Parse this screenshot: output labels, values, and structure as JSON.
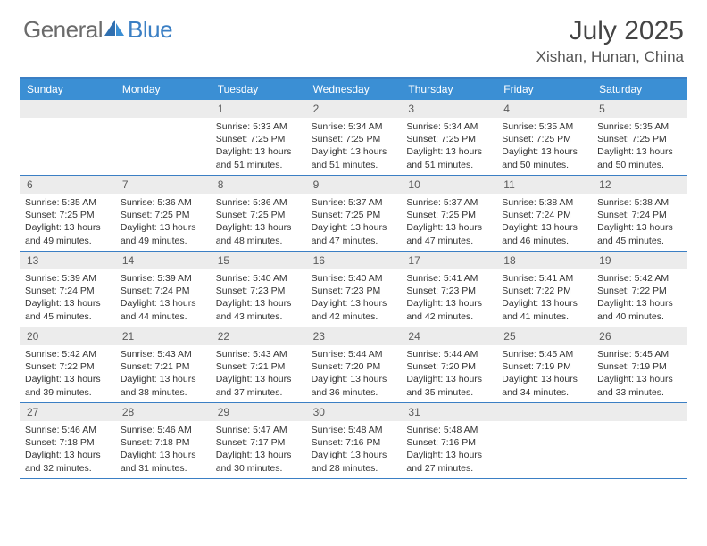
{
  "logo": {
    "text1": "General",
    "text2": "Blue"
  },
  "title": "July 2025",
  "location": "Xishan, Hunan, China",
  "colors": {
    "header_bar": "#3b8fd4",
    "accent_line": "#3b7fc4",
    "daynum_bg": "#ececec",
    "text": "#333333",
    "logo_gray": "#6b6b6b",
    "logo_blue": "#3b7fc4"
  },
  "day_headers": [
    "Sunday",
    "Monday",
    "Tuesday",
    "Wednesday",
    "Thursday",
    "Friday",
    "Saturday"
  ],
  "weeks": [
    [
      {
        "n": "",
        "sr": "",
        "ss": "",
        "dl": ""
      },
      {
        "n": "",
        "sr": "",
        "ss": "",
        "dl": ""
      },
      {
        "n": "1",
        "sr": "5:33 AM",
        "ss": "7:25 PM",
        "dl": "13 hours and 51 minutes."
      },
      {
        "n": "2",
        "sr": "5:34 AM",
        "ss": "7:25 PM",
        "dl": "13 hours and 51 minutes."
      },
      {
        "n": "3",
        "sr": "5:34 AM",
        "ss": "7:25 PM",
        "dl": "13 hours and 51 minutes."
      },
      {
        "n": "4",
        "sr": "5:35 AM",
        "ss": "7:25 PM",
        "dl": "13 hours and 50 minutes."
      },
      {
        "n": "5",
        "sr": "5:35 AM",
        "ss": "7:25 PM",
        "dl": "13 hours and 50 minutes."
      }
    ],
    [
      {
        "n": "6",
        "sr": "5:35 AM",
        "ss": "7:25 PM",
        "dl": "13 hours and 49 minutes."
      },
      {
        "n": "7",
        "sr": "5:36 AM",
        "ss": "7:25 PM",
        "dl": "13 hours and 49 minutes."
      },
      {
        "n": "8",
        "sr": "5:36 AM",
        "ss": "7:25 PM",
        "dl": "13 hours and 48 minutes."
      },
      {
        "n": "9",
        "sr": "5:37 AM",
        "ss": "7:25 PM",
        "dl": "13 hours and 47 minutes."
      },
      {
        "n": "10",
        "sr": "5:37 AM",
        "ss": "7:25 PM",
        "dl": "13 hours and 47 minutes."
      },
      {
        "n": "11",
        "sr": "5:38 AM",
        "ss": "7:24 PM",
        "dl": "13 hours and 46 minutes."
      },
      {
        "n": "12",
        "sr": "5:38 AM",
        "ss": "7:24 PM",
        "dl": "13 hours and 45 minutes."
      }
    ],
    [
      {
        "n": "13",
        "sr": "5:39 AM",
        "ss": "7:24 PM",
        "dl": "13 hours and 45 minutes."
      },
      {
        "n": "14",
        "sr": "5:39 AM",
        "ss": "7:24 PM",
        "dl": "13 hours and 44 minutes."
      },
      {
        "n": "15",
        "sr": "5:40 AM",
        "ss": "7:23 PM",
        "dl": "13 hours and 43 minutes."
      },
      {
        "n": "16",
        "sr": "5:40 AM",
        "ss": "7:23 PM",
        "dl": "13 hours and 42 minutes."
      },
      {
        "n": "17",
        "sr": "5:41 AM",
        "ss": "7:23 PM",
        "dl": "13 hours and 42 minutes."
      },
      {
        "n": "18",
        "sr": "5:41 AM",
        "ss": "7:22 PM",
        "dl": "13 hours and 41 minutes."
      },
      {
        "n": "19",
        "sr": "5:42 AM",
        "ss": "7:22 PM",
        "dl": "13 hours and 40 minutes."
      }
    ],
    [
      {
        "n": "20",
        "sr": "5:42 AM",
        "ss": "7:22 PM",
        "dl": "13 hours and 39 minutes."
      },
      {
        "n": "21",
        "sr": "5:43 AM",
        "ss": "7:21 PM",
        "dl": "13 hours and 38 minutes."
      },
      {
        "n": "22",
        "sr": "5:43 AM",
        "ss": "7:21 PM",
        "dl": "13 hours and 37 minutes."
      },
      {
        "n": "23",
        "sr": "5:44 AM",
        "ss": "7:20 PM",
        "dl": "13 hours and 36 minutes."
      },
      {
        "n": "24",
        "sr": "5:44 AM",
        "ss": "7:20 PM",
        "dl": "13 hours and 35 minutes."
      },
      {
        "n": "25",
        "sr": "5:45 AM",
        "ss": "7:19 PM",
        "dl": "13 hours and 34 minutes."
      },
      {
        "n": "26",
        "sr": "5:45 AM",
        "ss": "7:19 PM",
        "dl": "13 hours and 33 minutes."
      }
    ],
    [
      {
        "n": "27",
        "sr": "5:46 AM",
        "ss": "7:18 PM",
        "dl": "13 hours and 32 minutes."
      },
      {
        "n": "28",
        "sr": "5:46 AM",
        "ss": "7:18 PM",
        "dl": "13 hours and 31 minutes."
      },
      {
        "n": "29",
        "sr": "5:47 AM",
        "ss": "7:17 PM",
        "dl": "13 hours and 30 minutes."
      },
      {
        "n": "30",
        "sr": "5:48 AM",
        "ss": "7:16 PM",
        "dl": "13 hours and 28 minutes."
      },
      {
        "n": "31",
        "sr": "5:48 AM",
        "ss": "7:16 PM",
        "dl": "13 hours and 27 minutes."
      },
      {
        "n": "",
        "sr": "",
        "ss": "",
        "dl": ""
      },
      {
        "n": "",
        "sr": "",
        "ss": "",
        "dl": ""
      }
    ]
  ],
  "labels": {
    "sunrise": "Sunrise:",
    "sunset": "Sunset:",
    "daylight": "Daylight:"
  }
}
